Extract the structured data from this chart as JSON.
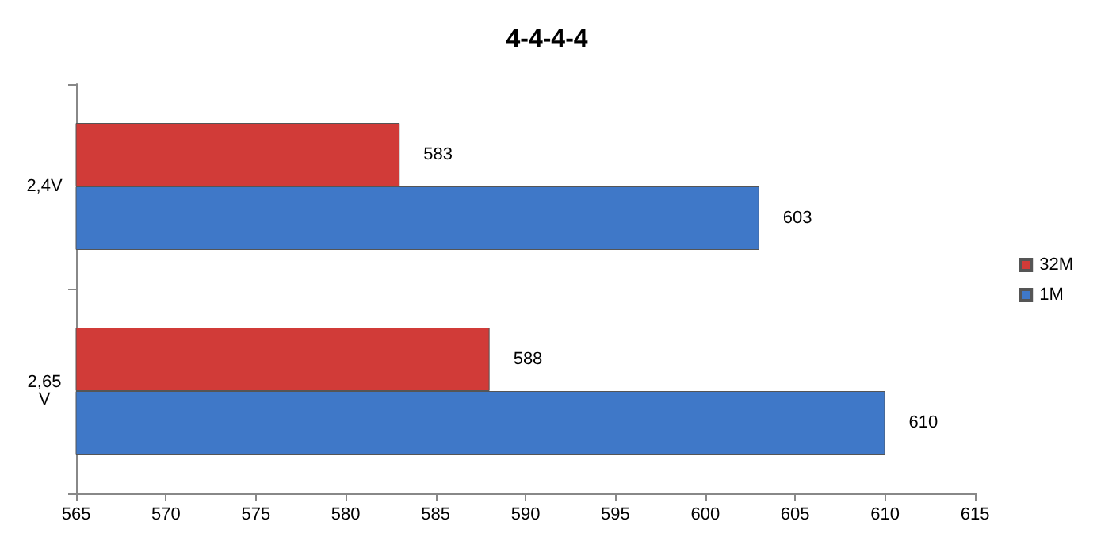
{
  "chart_data": {
    "type": "bar",
    "title": "4-4-4-4",
    "orientation": "horizontal",
    "categories": [
      "2,4V",
      "2,65 V"
    ],
    "series": [
      {
        "name": "32M",
        "color": "#d13b38",
        "values": [
          583,
          588
        ]
      },
      {
        "name": "1M",
        "color": "#3f78c8",
        "values": [
          603,
          610
        ]
      }
    ],
    "xlim": [
      565,
      615
    ],
    "xticks": [
      565,
      570,
      575,
      580,
      585,
      590,
      595,
      600,
      605,
      610,
      615
    ],
    "data_labels": true,
    "legend": "right",
    "grid": false
  }
}
